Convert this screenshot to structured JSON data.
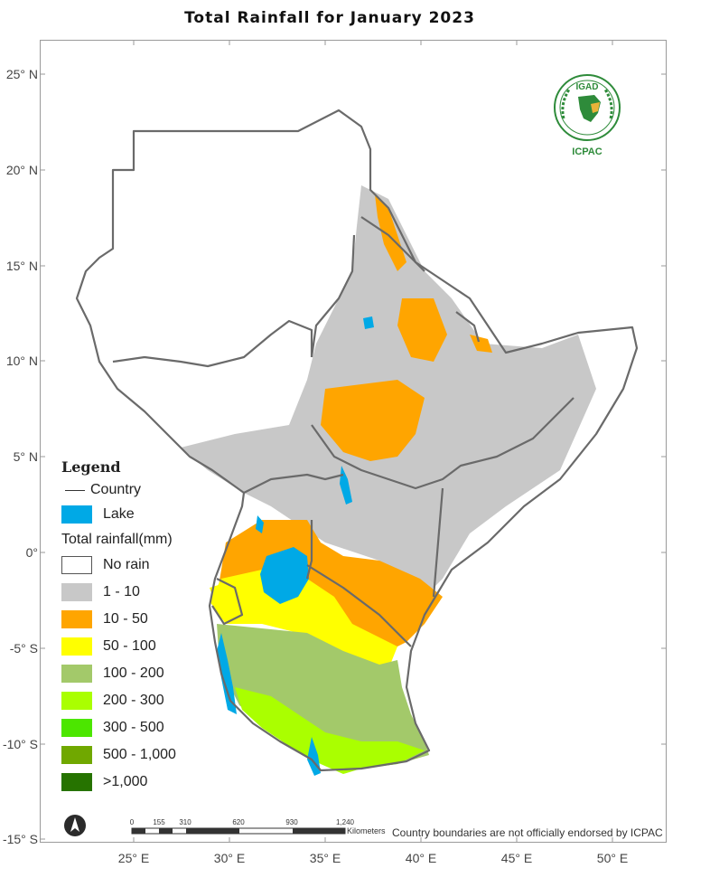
{
  "title": "Total Rainfall for January 2023",
  "latitude_labels": [
    "25° N",
    "20° N",
    "15° N",
    "10° N",
    "5° N",
    "0°",
    "-5° S",
    "-10° S",
    "-15° S"
  ],
  "longitude_labels": [
    "25° E",
    "30° E",
    "35° E",
    "40° E",
    "45° E",
    "50° E"
  ],
  "legend": {
    "title": "Legend",
    "country_label": "Country",
    "lake_label": "Lake",
    "rainfall_title": "Total rainfall(mm)",
    "classes": [
      {
        "label": "No rain",
        "color": "#ffffff"
      },
      {
        "label": "1 - 10",
        "color": "#c8c8c8"
      },
      {
        "label": "10 - 50",
        "color": "#ffa500"
      },
      {
        "label": "50 - 100",
        "color": "#ffff00"
      },
      {
        "label": "100 - 200",
        "color": "#a3c96a"
      },
      {
        "label": "200 - 300",
        "color": "#aaff00"
      },
      {
        "label": "300 - 500",
        "color": "#4ce600"
      },
      {
        "label": "500 - 1,000",
        "color": "#70a800"
      },
      {
        "label": ">1,000",
        "color": "#267300"
      }
    ],
    "lake_color": "#00a9e6"
  },
  "scale_bar": {
    "ticks": [
      "0",
      "155",
      "310",
      "620",
      "930",
      "1,240"
    ],
    "unit": "Kilometers"
  },
  "disclaimer": "Country boundaries are not officially endorsed by ICPAC",
  "logo": {
    "top_text": "IGAD",
    "bottom_text": "ICPAC"
  },
  "icons": {
    "north_arrow": "north-arrow-icon"
  }
}
